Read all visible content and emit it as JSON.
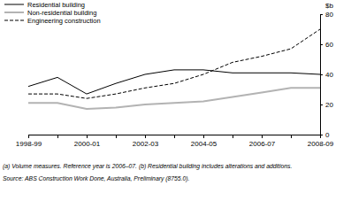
{
  "chart_data": {
    "type": "line",
    "y_label": "$b",
    "categories": [
      "1998-99",
      null,
      "2000-01",
      null,
      "2002-03",
      null,
      "2004-05",
      null,
      "2006-07",
      null,
      "2008-09"
    ],
    "series": [
      {
        "name": "Residential building",
        "color": "#000000",
        "line_style": "solid",
        "values": [
          32,
          38,
          27,
          34,
          40,
          43,
          43,
          41,
          41,
          41,
          40
        ]
      },
      {
        "name": "Non-residential building",
        "color": "#b3b3b3",
        "line_style": "solid",
        "values": [
          21,
          21,
          17,
          18,
          20,
          21,
          22,
          25,
          28,
          31,
          31
        ]
      },
      {
        "name": "Engineering construction",
        "color": "#000000",
        "line_style": "dashed",
        "values": [
          27,
          27,
          24,
          27,
          31,
          34,
          40,
          48,
          52,
          57,
          70
        ]
      }
    ],
    "ylim": [
      0,
      80
    ],
    "yticks": [
      0,
      20,
      40,
      60,
      80
    ],
    "grid": false,
    "legend": "top-left",
    "notes": "(a) Volume measures. Reference year is 2006–07. (b) Residential building includes alterations and additions.",
    "source": "Source: ABS Construction Work Done, Australia, Preliminary (8755.0)."
  }
}
